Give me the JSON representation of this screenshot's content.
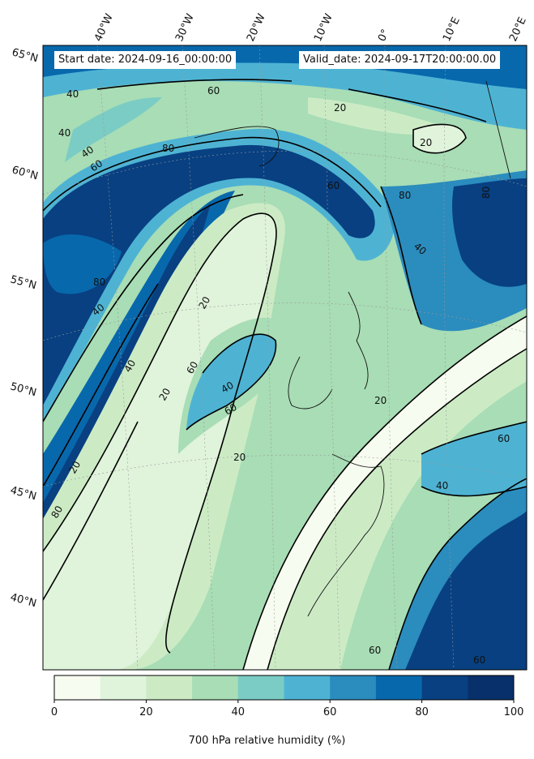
{
  "header": {
    "start_label": "Start date: 2024-09-16_00:00:00",
    "valid_label": "Valid_date: 2024-09-17T20:00:00.00"
  },
  "map": {
    "variable": "700 hPa relative humidity (%)",
    "lon_labels": [
      "40°W",
      "30°W",
      "20°W",
      "10°W",
      "0°",
      "10°E",
      "20°E"
    ],
    "lat_labels": [
      "65°N",
      "60°N",
      "55°N",
      "50°N",
      "45°N",
      "40°N"
    ],
    "contour_labels": [
      "20",
      "20",
      "20",
      "20",
      "20",
      "20",
      "20",
      "40",
      "40",
      "40",
      "40",
      "40",
      "40",
      "40",
      "40",
      "60",
      "60",
      "60",
      "60",
      "60",
      "60",
      "60",
      "60",
      "80",
      "80",
      "80",
      "80",
      "80"
    ]
  },
  "colorbar": {
    "label": "700 hPa relative humidity (%)",
    "ticks": [
      "0",
      "20",
      "40",
      "60",
      "80",
      "100"
    ],
    "levels": [
      0,
      10,
      20,
      30,
      40,
      50,
      60,
      70,
      80,
      90,
      100
    ],
    "colors": [
      "#f7fcf0",
      "#e0f3db",
      "#ccebc5",
      "#a8ddb5",
      "#7bccc4",
      "#4eb3d3",
      "#2b8cbe",
      "#0868ac",
      "#084081",
      "#08306b"
    ]
  }
}
